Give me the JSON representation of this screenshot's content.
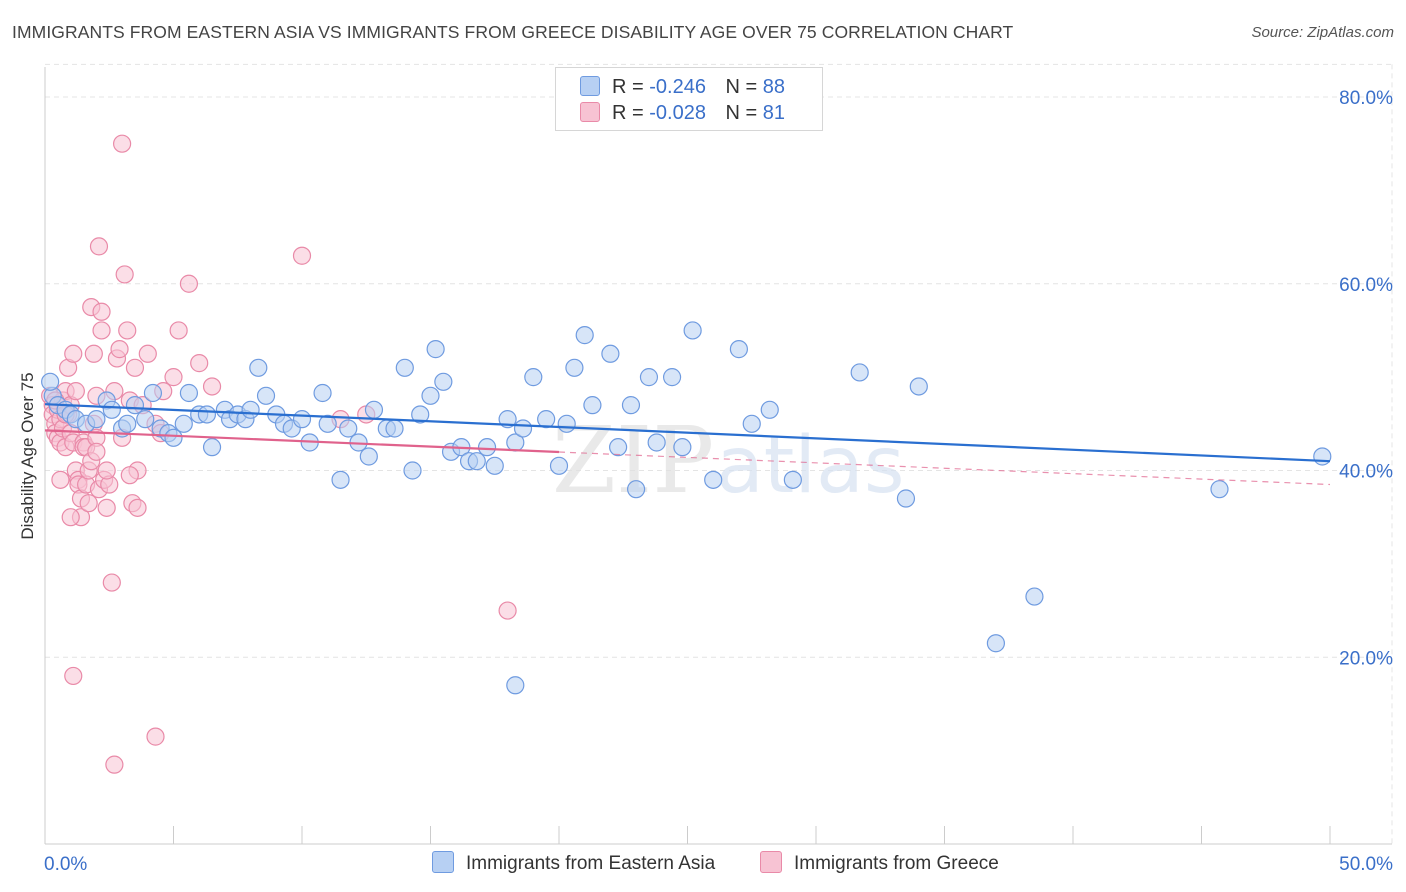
{
  "header": {
    "title": "IMMIGRANTS FROM EASTERN ASIA VS IMMIGRANTS FROM GREECE DISABILITY AGE OVER 75 CORRELATION CHART",
    "source": "Source: ZipAtlas.com"
  },
  "legend": {
    "rows": [
      {
        "r_label": "R =",
        "r_value": "-0.246",
        "n_label": "N =",
        "n_value": "88"
      },
      {
        "r_label": "R =",
        "r_value": "-0.028",
        "n_label": "N =",
        "n_value": "81"
      }
    ]
  },
  "colors": {
    "blue_fill": "#b7d0f3",
    "blue_stroke": "#6f9be0",
    "blue_line": "#2a6fd0",
    "pink_fill": "#f7c3d3",
    "pink_stroke": "#e98aa8",
    "pink_line": "#e0628c",
    "axis_text": "#3a6fc9",
    "grid": "#e4e4e4"
  },
  "watermark": {
    "part1": "ZIP",
    "part2": "atlas"
  },
  "chart_data": {
    "type": "scatter",
    "title": "IMMIGRANTS FROM EASTERN ASIA VS IMMIGRANTS FROM GREECE DISABILITY AGE OVER 75 CORRELATION CHART",
    "xlabel": "",
    "ylabel": "Disability Age Over 75",
    "xlim": [
      0,
      50
    ],
    "ylim": [
      0,
      83.5
    ],
    "x_tick_labels": [
      "0.0%",
      "50.0%"
    ],
    "y_ticks": [
      20,
      40,
      60,
      80
    ],
    "y_tick_labels": [
      "20.0%",
      "40.0%",
      "60.0%",
      "80.0%"
    ],
    "grid": true,
    "legend_position": "bottom",
    "series": [
      {
        "name": "Immigrants from Eastern Asia",
        "r": -0.246,
        "n": 88,
        "trend": {
          "x": [
            0,
            50
          ],
          "y": [
            47.1,
            41.0
          ]
        },
        "points": [
          [
            0.3,
            48.0
          ],
          [
            0.5,
            47.0
          ],
          [
            0.8,
            46.5
          ],
          [
            1.0,
            46.0
          ],
          [
            1.2,
            45.5
          ],
          [
            1.6,
            45.0
          ],
          [
            2.0,
            45.5
          ],
          [
            2.4,
            47.5
          ],
          [
            2.6,
            46.5
          ],
          [
            3.0,
            44.5
          ],
          [
            3.2,
            45.0
          ],
          [
            3.5,
            47.0
          ],
          [
            3.9,
            45.5
          ],
          [
            4.2,
            48.3
          ],
          [
            4.5,
            44.5
          ],
          [
            4.8,
            44.0
          ],
          [
            5.0,
            43.5
          ],
          [
            5.4,
            45.0
          ],
          [
            5.6,
            48.3
          ],
          [
            6.0,
            46.0
          ],
          [
            6.3,
            46.0
          ],
          [
            6.5,
            42.5
          ],
          [
            7.0,
            46.5
          ],
          [
            7.2,
            45.5
          ],
          [
            7.5,
            46.0
          ],
          [
            7.8,
            45.5
          ],
          [
            8.0,
            46.5
          ],
          [
            8.3,
            51.0
          ],
          [
            8.6,
            48.0
          ],
          [
            9.0,
            46.0
          ],
          [
            9.3,
            45.0
          ],
          [
            9.6,
            44.5
          ],
          [
            10.0,
            45.5
          ],
          [
            10.3,
            43.0
          ],
          [
            10.8,
            48.3
          ],
          [
            11.0,
            45.0
          ],
          [
            11.5,
            39.0
          ],
          [
            11.8,
            44.5
          ],
          [
            12.2,
            43.0
          ],
          [
            12.6,
            41.5
          ],
          [
            12.8,
            46.5
          ],
          [
            13.3,
            44.5
          ],
          [
            13.6,
            44.5
          ],
          [
            14.0,
            51.0
          ],
          [
            14.3,
            40.0
          ],
          [
            14.6,
            46.0
          ],
          [
            15.0,
            48.0
          ],
          [
            15.2,
            53.0
          ],
          [
            15.5,
            49.5
          ],
          [
            15.8,
            42.0
          ],
          [
            16.2,
            42.5
          ],
          [
            16.5,
            41.0
          ],
          [
            16.8,
            41.0
          ],
          [
            17.2,
            42.5
          ],
          [
            17.5,
            40.5
          ],
          [
            18.0,
            45.5
          ],
          [
            18.3,
            43.0
          ],
          [
            18.6,
            44.5
          ],
          [
            19.0,
            50.0
          ],
          [
            19.5,
            45.5
          ],
          [
            20.0,
            40.5
          ],
          [
            20.3,
            45.0
          ],
          [
            20.6,
            51.0
          ],
          [
            21.0,
            54.5
          ],
          [
            21.3,
            47.0
          ],
          [
            22.0,
            52.5
          ],
          [
            22.3,
            42.5
          ],
          [
            22.8,
            47.0
          ],
          [
            23.0,
            38.0
          ],
          [
            23.5,
            50.0
          ],
          [
            23.8,
            43.0
          ],
          [
            24.4,
            50.0
          ],
          [
            24.8,
            42.5
          ],
          [
            25.2,
            55.0
          ],
          [
            26.0,
            39.0
          ],
          [
            27.0,
            53.0
          ],
          [
            27.5,
            45.0
          ],
          [
            28.2,
            46.5
          ],
          [
            29.1,
            39.0
          ],
          [
            31.7,
            50.5
          ],
          [
            33.5,
            37.0
          ],
          [
            34.0,
            49.0
          ],
          [
            37.0,
            21.5
          ],
          [
            38.5,
            26.5
          ],
          [
            45.7,
            38.0
          ],
          [
            49.7,
            41.5
          ],
          [
            18.3,
            17.0
          ],
          [
            0.2,
            49.5
          ]
        ]
      },
      {
        "name": "Immigrants from Greece",
        "r": -0.028,
        "n": 81,
        "trend": {
          "x": [
            0,
            50
          ],
          "y": [
            44.3,
            38.5
          ]
        },
        "trend_solid_until": 20,
        "points": [
          [
            0.2,
            48.0
          ],
          [
            0.3,
            47.0
          ],
          [
            0.3,
            46.0
          ],
          [
            0.4,
            45.0
          ],
          [
            0.4,
            44.0
          ],
          [
            0.5,
            43.5
          ],
          [
            0.5,
            46.5
          ],
          [
            0.6,
            43.0
          ],
          [
            0.6,
            45.5
          ],
          [
            0.7,
            47.5
          ],
          [
            0.7,
            44.5
          ],
          [
            0.8,
            42.5
          ],
          [
            0.8,
            48.5
          ],
          [
            0.9,
            46.0
          ],
          [
            0.9,
            51.0
          ],
          [
            1.0,
            47.0
          ],
          [
            1.0,
            44.0
          ],
          [
            1.1,
            43.0
          ],
          [
            1.1,
            52.5
          ],
          [
            1.2,
            48.5
          ],
          [
            1.2,
            40.0
          ],
          [
            1.3,
            39.0
          ],
          [
            1.3,
            38.5
          ],
          [
            1.4,
            37.0
          ],
          [
            1.4,
            35.0
          ],
          [
            1.5,
            43.0
          ],
          [
            1.5,
            42.5
          ],
          [
            1.6,
            42.5
          ],
          [
            1.6,
            38.5
          ],
          [
            1.7,
            36.5
          ],
          [
            1.7,
            40.0
          ],
          [
            1.8,
            57.5
          ],
          [
            1.8,
            41.0
          ],
          [
            1.9,
            52.5
          ],
          [
            1.9,
            45.0
          ],
          [
            2.0,
            48.0
          ],
          [
            2.0,
            43.5
          ],
          [
            2.1,
            38.0
          ],
          [
            2.1,
            64.0
          ],
          [
            2.2,
            55.0
          ],
          [
            2.2,
            57.0
          ],
          [
            2.3,
            39.0
          ],
          [
            2.4,
            36.0
          ],
          [
            2.5,
            38.5
          ],
          [
            2.6,
            28.0
          ],
          [
            2.7,
            48.5
          ],
          [
            2.8,
            52.0
          ],
          [
            2.9,
            53.0
          ],
          [
            3.0,
            43.5
          ],
          [
            3.1,
            61.0
          ],
          [
            3.2,
            55.0
          ],
          [
            3.3,
            47.5
          ],
          [
            3.4,
            36.5
          ],
          [
            3.5,
            51.0
          ],
          [
            3.6,
            40.0
          ],
          [
            3.8,
            47.0
          ],
          [
            4.0,
            52.5
          ],
          [
            4.3,
            45.0
          ],
          [
            4.5,
            44.0
          ],
          [
            4.6,
            48.5
          ],
          [
            5.0,
            50.0
          ],
          [
            5.2,
            55.0
          ],
          [
            5.6,
            60.0
          ],
          [
            6.0,
            51.5
          ],
          [
            6.5,
            49.0
          ],
          [
            10.0,
            63.0
          ],
          [
            11.5,
            45.5
          ],
          [
            12.5,
            46.0
          ],
          [
            3.0,
            75.0
          ],
          [
            1.1,
            18.0
          ],
          [
            4.3,
            11.5
          ],
          [
            2.7,
            8.5
          ],
          [
            0.6,
            39.0
          ],
          [
            1.0,
            35.0
          ],
          [
            2.4,
            40.0
          ],
          [
            18.0,
            25.0
          ],
          [
            3.6,
            36.0
          ],
          [
            0.8,
            46.0
          ],
          [
            2.0,
            42.0
          ],
          [
            0.4,
            47.5
          ],
          [
            3.3,
            39.5
          ]
        ]
      }
    ]
  }
}
